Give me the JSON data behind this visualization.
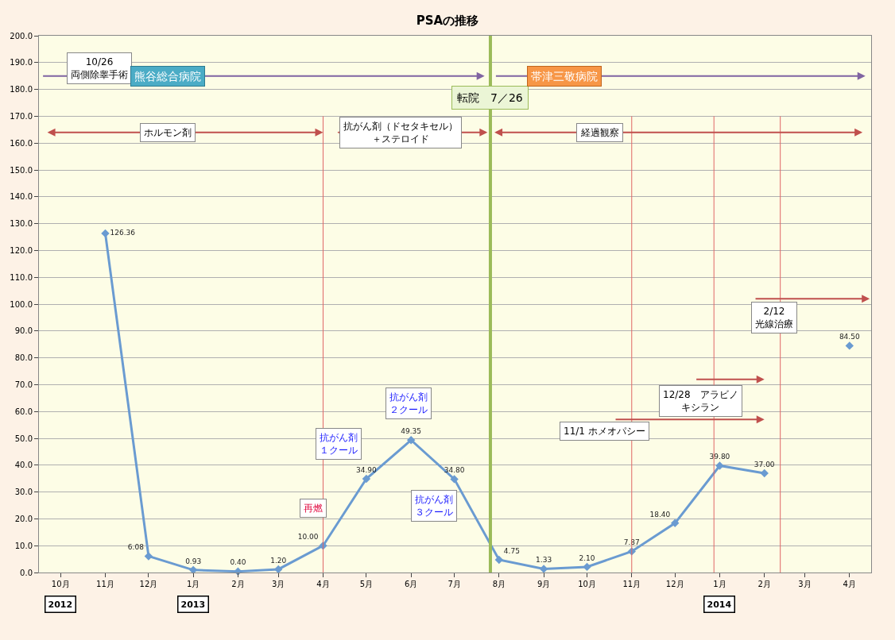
{
  "chart_data": {
    "type": "line",
    "title": "PSAの推移",
    "x": [
      "2012-11",
      "2012-12",
      "2013-01",
      "2013-02",
      "2013-03",
      "2013-04",
      "2013-05",
      "2013-06",
      "2013-07",
      "2013-08",
      "2013-09",
      "2013-10",
      "2013-11",
      "2013-12",
      "2014-01",
      "2014-02",
      "2014-03",
      "2014-04"
    ],
    "series": [
      {
        "color": "#6a9bd1",
        "values": [
          126.36,
          6.08,
          0.93,
          0.4,
          1.2,
          10.0,
          34.9,
          49.35,
          34.8,
          4.75,
          1.33,
          2.1,
          7.87,
          18.4,
          39.8,
          37.0,
          null,
          84.5
        ],
        "value_labels": [
          "126.36",
          "6.08",
          "0.93",
          "0.40",
          "1.20",
          "10.00",
          "34.90",
          "49.35",
          "34.80",
          "4.75",
          "1.33",
          "2.10",
          "7.87",
          "18.40",
          "39.80",
          "37.00",
          null,
          "84.50"
        ]
      }
    ],
    "xlim": [
      "2012-09-16",
      "2014-04-16"
    ],
    "xticks": [
      {
        "value": "2012-10",
        "label": "10月"
      },
      {
        "value": "2012-11",
        "label": "11月"
      },
      {
        "value": "2012-12",
        "label": "12月"
      },
      {
        "value": "2013-01",
        "label": "1月"
      },
      {
        "value": "2013-02",
        "label": "2月"
      },
      {
        "value": "2013-03",
        "label": "3月"
      },
      {
        "value": "2013-04",
        "label": "4月"
      },
      {
        "value": "2013-05",
        "label": "5月"
      },
      {
        "value": "2013-06",
        "label": "6月"
      },
      {
        "value": "2013-07",
        "label": "7月"
      },
      {
        "value": "2013-08",
        "label": "8月"
      },
      {
        "value": "2013-09",
        "label": "9月"
      },
      {
        "value": "2013-10",
        "label": "10月"
      },
      {
        "value": "2013-11",
        "label": "11月"
      },
      {
        "value": "2013-12",
        "label": "12月"
      },
      {
        "value": "2014-01",
        "label": "1月"
      },
      {
        "value": "2014-02",
        "label": "2月"
      },
      {
        "value": "2014-03",
        "label": "3月"
      },
      {
        "value": "2014-04",
        "label": "4月"
      }
    ],
    "ylim": [
      0,
      200
    ],
    "yticks": [
      {
        "value": 0,
        "label": "0.0"
      },
      {
        "value": 10,
        "label": "10.0"
      },
      {
        "value": 20,
        "label": "20.0"
      },
      {
        "value": 30,
        "label": "30.0"
      },
      {
        "value": 40,
        "label": "40.0"
      },
      {
        "value": 50,
        "label": "50.0"
      },
      {
        "value": 60,
        "label": "60.0"
      },
      {
        "value": 70,
        "label": "70.0"
      },
      {
        "value": 80,
        "label": "80.0"
      },
      {
        "value": 90,
        "label": "90.0"
      },
      {
        "value": 100,
        "label": "100.0"
      },
      {
        "value": 110,
        "label": "110.0"
      },
      {
        "value": 120,
        "label": "120.0"
      },
      {
        "value": 130,
        "label": "130.0"
      },
      {
        "value": 140,
        "label": "140.0"
      },
      {
        "value": 150,
        "label": "150.0"
      },
      {
        "value": 160,
        "label": "160.0"
      },
      {
        "value": 170,
        "label": "170.0"
      },
      {
        "value": 180,
        "label": "180.0"
      },
      {
        "value": 190,
        "label": "190.0"
      },
      {
        "value": 200,
        "label": "200.0"
      }
    ],
    "grid": "y",
    "marker": "diamond",
    "line_style": "solid",
    "ref_lines": [
      {
        "axis": "x",
        "value": "2013-04-01",
        "color": "#e06666"
      },
      {
        "axis": "x",
        "value": "2013-07-26",
        "label": "転院　7／26",
        "color": "#9bbb59"
      },
      {
        "axis": "x",
        "value": "2013-11-01",
        "color": "#e06666"
      },
      {
        "axis": "x",
        "value": "2013-12-28",
        "color": "#e06666"
      },
      {
        "axis": "x",
        "value": "2014-02-12",
        "color": "#e06666"
      }
    ],
    "annotations": [
      "10/26\n両側除睾手術",
      "熊谷総合病院",
      "帯津三敬病院",
      "ホルモン剤",
      "抗がん剤（ドセタキセル）＋ステロイド",
      "経過観察",
      "再燃",
      "抗がん剤１クール",
      "抗がん剤２クール",
      "抗がん剤３クール",
      "11/1 ホメオパシー",
      "12/28　アラビノキシラン",
      "2/12\n光線治療",
      "2012",
      "2013",
      "2014"
    ]
  }
}
